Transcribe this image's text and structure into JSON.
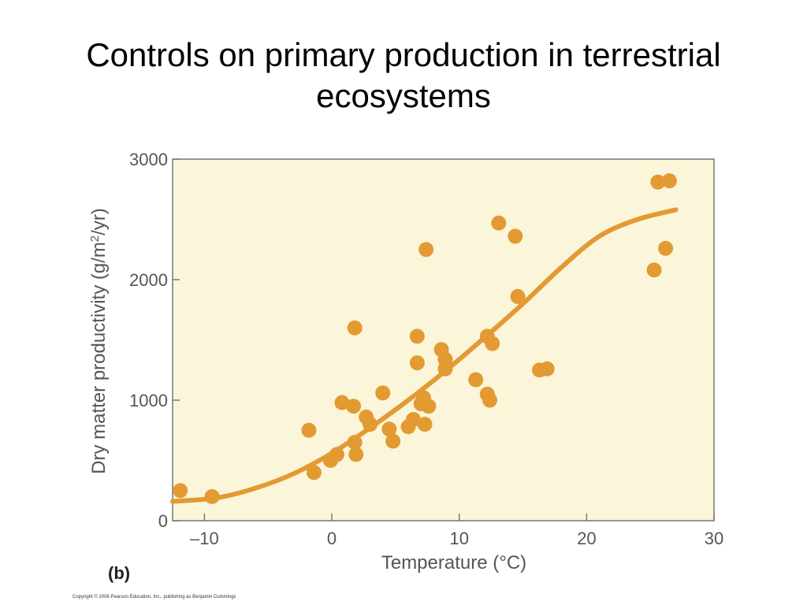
{
  "slide": {
    "title_line1": "Controls on primary production in terrestrial",
    "title_line2": "ecosystems",
    "copyright": "Copyright © 2006 Pearson Education, Inc., publishing as Benjamin Cummings"
  },
  "chart_data": {
    "type": "scatter",
    "panel_label": "(b)",
    "xlabel": "Temperature (°C)",
    "ylabel_parts": [
      "Dry matter productivity (g/m",
      "2",
      "/yr)"
    ],
    "xlim": [
      -12.5,
      30
    ],
    "ylim": [
      0,
      3000
    ],
    "x_ticks": [
      {
        "value": -10,
        "label": "–10"
      },
      {
        "value": 0,
        "label": "0"
      },
      {
        "value": 10,
        "label": "10"
      },
      {
        "value": 20,
        "label": "20"
      },
      {
        "value": 30,
        "label": "30"
      }
    ],
    "y_ticks": [
      {
        "value": 0,
        "label": "0"
      },
      {
        "value": 1000,
        "label": "1000"
      },
      {
        "value": 2000,
        "label": "2000"
      },
      {
        "value": 3000,
        "label": "3000"
      }
    ],
    "grid": false,
    "background_color": "#fbf5d9",
    "marker_color": "#e39a33",
    "series": [
      {
        "type": "scatter",
        "points": [
          [
            -11.9,
            250
          ],
          [
            -9.4,
            200
          ],
          [
            -1.8,
            750
          ],
          [
            -1.4,
            400
          ],
          [
            -0.1,
            500
          ],
          [
            0.4,
            550
          ],
          [
            0.8,
            980
          ],
          [
            1.7,
            950
          ],
          [
            1.8,
            650
          ],
          [
            1.9,
            550
          ],
          [
            1.8,
            1600
          ],
          [
            2.7,
            860
          ],
          [
            3.0,
            800
          ],
          [
            4.0,
            1060
          ],
          [
            4.5,
            760
          ],
          [
            4.8,
            660
          ],
          [
            6.0,
            780
          ],
          [
            6.4,
            840
          ],
          [
            6.7,
            1530
          ],
          [
            6.7,
            1310
          ],
          [
            7.0,
            970
          ],
          [
            7.2,
            1020
          ],
          [
            7.3,
            800
          ],
          [
            7.6,
            950
          ],
          [
            7.4,
            2250
          ],
          [
            8.6,
            1420
          ],
          [
            8.9,
            1340
          ],
          [
            8.9,
            1260
          ],
          [
            11.3,
            1170
          ],
          [
            12.2,
            1530
          ],
          [
            12.2,
            1050
          ],
          [
            12.4,
            1000
          ],
          [
            12.6,
            1470
          ],
          [
            13.1,
            2470
          ],
          [
            14.4,
            2360
          ],
          [
            14.6,
            1860
          ],
          [
            16.3,
            1250
          ],
          [
            16.9,
            1260
          ],
          [
            25.3,
            2080
          ],
          [
            25.6,
            2810
          ],
          [
            26.2,
            2260
          ],
          [
            26.5,
            2820
          ]
        ]
      },
      {
        "type": "line",
        "points": [
          [
            -12.5,
            160
          ],
          [
            -9,
            190
          ],
          [
            -6,
            270
          ],
          [
            -3,
            390
          ],
          [
            0,
            560
          ],
          [
            3,
            770
          ],
          [
            6,
            1000
          ],
          [
            9,
            1250
          ],
          [
            12,
            1520
          ],
          [
            15,
            1800
          ],
          [
            18,
            2100
          ],
          [
            21,
            2360
          ],
          [
            24,
            2500
          ],
          [
            27,
            2580
          ]
        ]
      }
    ]
  }
}
